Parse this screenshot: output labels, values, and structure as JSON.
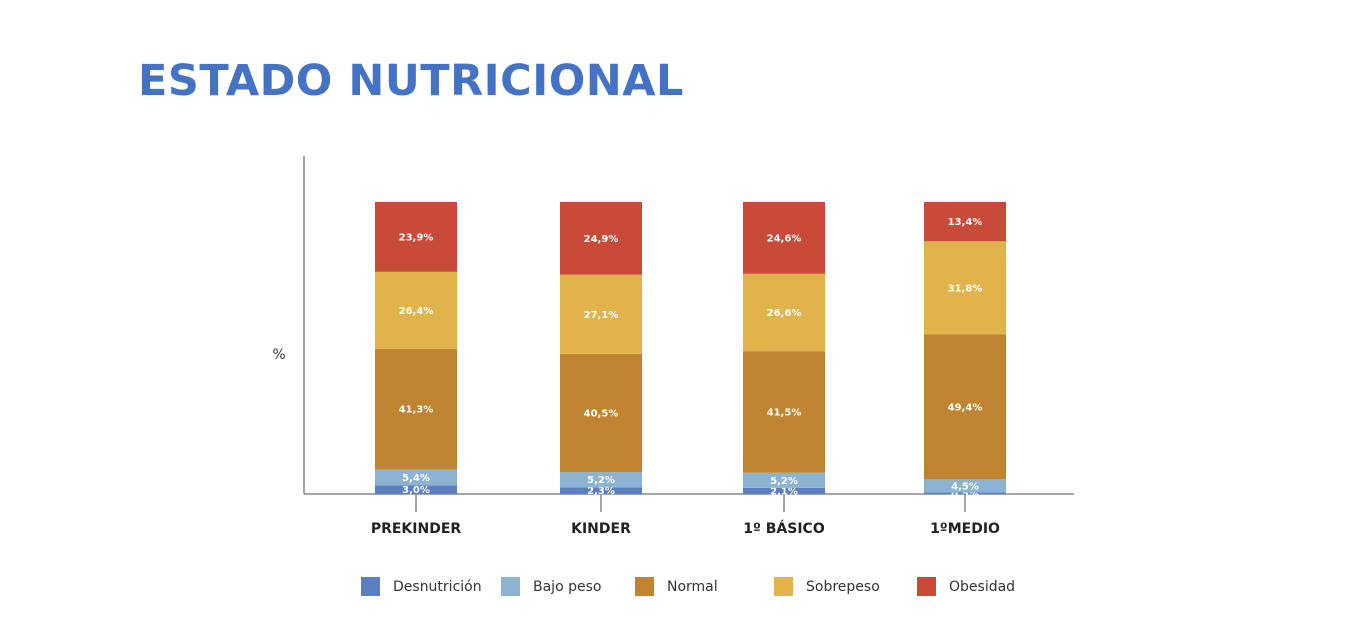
{
  "page": {
    "title": "ESTADO NUTRICIONAL"
  },
  "chart_data": {
    "type": "bar",
    "stacked": true,
    "title": "",
    "xlabel": "",
    "ylabel": "%",
    "ylim": [
      0,
      100
    ],
    "grid": false,
    "legend_position": "bottom",
    "categories": [
      "PREKINDER",
      "KINDER",
      "1º BÁSICO",
      "1ºMEDIO"
    ],
    "series": [
      {
        "name": "Desnutrición",
        "color": "#5b7fc0",
        "values": [
          3.0,
          2.3,
          2.1,
          0.5
        ],
        "labels": [
          "3,0%",
          "2,3%",
          "2,1%",
          "0,5%"
        ]
      },
      {
        "name": "Bajo peso",
        "color": "#8db3d3",
        "values": [
          5.4,
          5.2,
          5.2,
          4.5
        ],
        "labels": [
          "5,4%",
          "5,2%",
          "5,2%",
          "4,5%"
        ]
      },
      {
        "name": "Normal",
        "color": "#bf8331",
        "values": [
          41.3,
          40.5,
          41.5,
          49.4
        ],
        "labels": [
          "41,3%",
          "40,5%",
          "41,5%",
          "49,4%"
        ]
      },
      {
        "name": "Sobrepeso",
        "color": "#e0b44a",
        "values": [
          26.4,
          27.1,
          26.6,
          31.8
        ],
        "labels": [
          "26,4%",
          "27,1%",
          "26,6%",
          "31,8%"
        ]
      },
      {
        "name": "Obesidad",
        "color": "#c84b3a",
        "values": [
          23.9,
          24.9,
          24.6,
          13.4
        ],
        "labels": [
          "23,9%",
          "24,9%",
          "24,6%",
          "13,4%"
        ]
      }
    ]
  }
}
